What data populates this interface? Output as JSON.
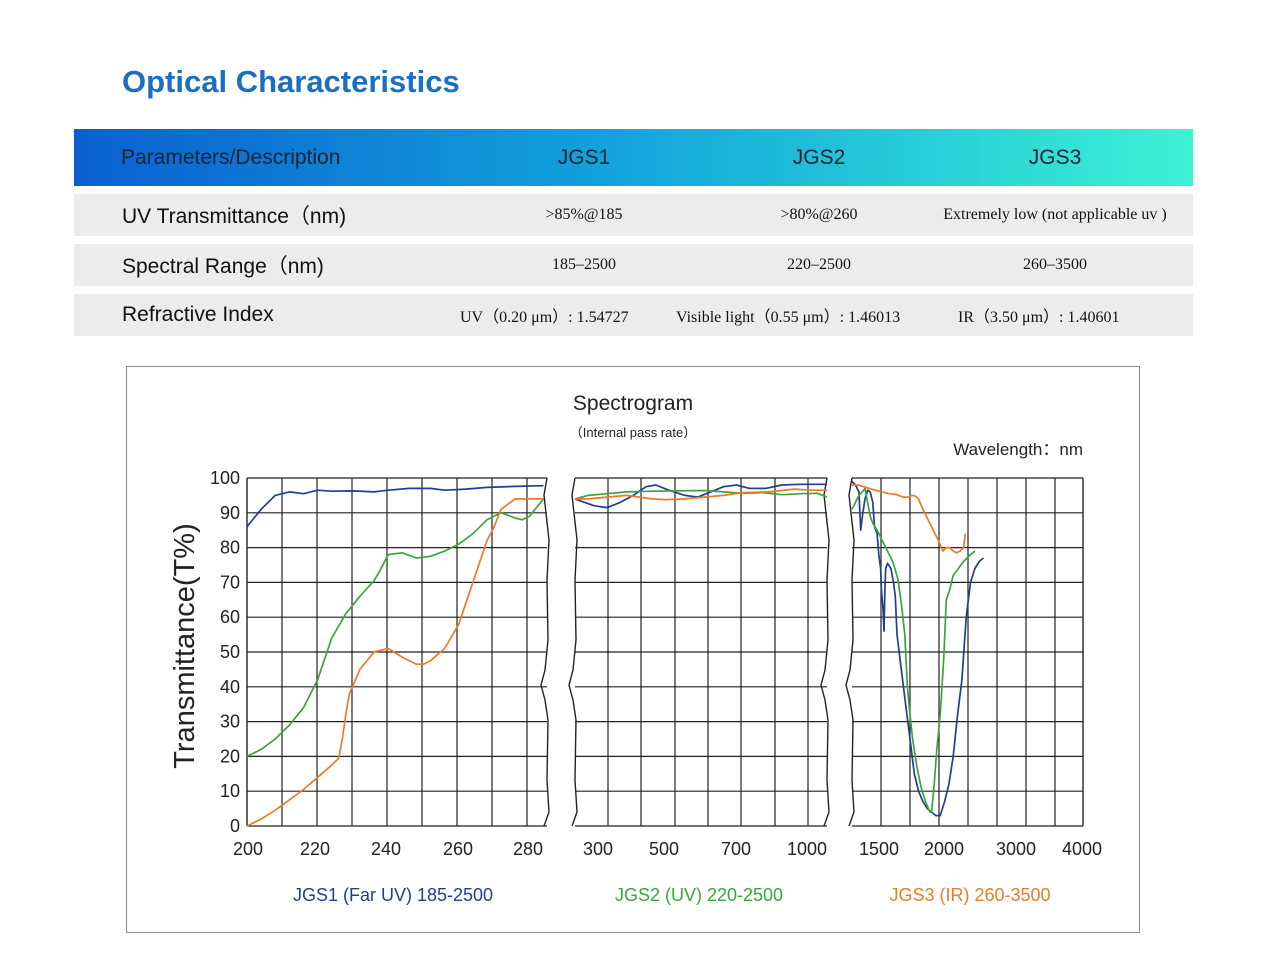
{
  "page": {
    "title": "Optical Characteristics"
  },
  "table": {
    "headers": [
      "Parameters/Description",
      "JGS1",
      "JGS2",
      "JGS3"
    ],
    "rows": [
      {
        "label": "UV Transmittance（nm)",
        "values": [
          ">85%@185",
          ">80%@260",
          "Extremely low (not applicable uv )"
        ]
      },
      {
        "label": "Spectral Range（nm)",
        "values": [
          "185–2500",
          "220–2500",
          "260–3500"
        ]
      },
      {
        "label": "Refractive Index",
        "values": [
          "UV（0.20 μm）: 1.54727",
          "Visible light（0.55 μm）: 1.46013",
          "IR（3.50 μm）: 1.40601"
        ]
      }
    ]
  },
  "chart_data": {
    "type": "line",
    "title": "Spectrogram",
    "subtitle": "（Internal pass rate）",
    "unit_label": "Wavelength：nm",
    "ylabel": "Transmittance(T%)",
    "ylim": [
      0,
      100
    ],
    "yticks": [
      "100",
      "90",
      "80",
      "70",
      "60",
      "50",
      "40",
      "30",
      "20",
      "10",
      "0"
    ],
    "colors": {
      "JGS1": "#1f3f8f",
      "JGS2": "#3aa63a",
      "JGS3": "#ee7a28"
    },
    "panels": [
      {
        "xlim": [
          200,
          285
        ],
        "xticks": [
          200,
          220,
          240,
          260,
          280
        ],
        "xtick_labels": [
          "200",
          "220",
          "240",
          "260",
          "280"
        ],
        "caption": "JGS1 (Far UV) 185-2500",
        "caption_color": "#1f3f8f",
        "series": [
          {
            "key": "JGS1",
            "points": [
              [
                200,
                86
              ],
              [
                204,
                91
              ],
              [
                208,
                95
              ],
              [
                212,
                96
              ],
              [
                216,
                95.5
              ],
              [
                220,
                96.5
              ],
              [
                224,
                96.2
              ],
              [
                230,
                96.3
              ],
              [
                236,
                96
              ],
              [
                240,
                96.5
              ],
              [
                246,
                97
              ],
              [
                252,
                97
              ],
              [
                256,
                96.5
              ],
              [
                262,
                96.8
              ],
              [
                268,
                97.3
              ],
              [
                276,
                97.6
              ],
              [
                284,
                97.8
              ]
            ]
          },
          {
            "key": "JGS2",
            "points": [
              [
                200,
                20
              ],
              [
                204,
                22
              ],
              [
                208,
                25
              ],
              [
                212,
                29
              ],
              [
                216,
                34
              ],
              [
                220,
                42
              ],
              [
                224,
                54
              ],
              [
                228,
                61
              ],
              [
                232,
                66
              ],
              [
                236,
                70.5
              ],
              [
                238,
                74
              ],
              [
                240,
                78
              ],
              [
                244,
                78.5
              ],
              [
                248,
                77
              ],
              [
                252,
                77.5
              ],
              [
                256,
                79
              ],
              [
                260,
                81
              ],
              [
                264,
                84
              ],
              [
                268,
                88
              ],
              [
                272,
                90
              ],
              [
                276,
                88.5
              ],
              [
                278,
                88
              ],
              [
                280,
                89
              ],
              [
                284,
                94
              ]
            ]
          },
          {
            "key": "JGS3",
            "points": [
              [
                200,
                0
              ],
              [
                204,
                2
              ],
              [
                208,
                4.5
              ],
              [
                212,
                7.5
              ],
              [
                216,
                10.5
              ],
              [
                220,
                14
              ],
              [
                224,
                17.5
              ],
              [
                226,
                19.5
              ],
              [
                227,
                25
              ],
              [
                228,
                32
              ],
              [
                229,
                38
              ],
              [
                232,
                45
              ],
              [
                236,
                50
              ],
              [
                240,
                51
              ],
              [
                244,
                48.5
              ],
              [
                248,
                46.5
              ],
              [
                250,
                46.5
              ],
              [
                252,
                47.5
              ],
              [
                256,
                51
              ],
              [
                260,
                58
              ],
              [
                264,
                70
              ],
              [
                268,
                82
              ],
              [
                270,
                86
              ],
              [
                272,
                91
              ],
              [
                276,
                94
              ],
              [
                284,
                94
              ]
            ]
          }
        ]
      },
      {
        "xlim": [
          280,
          1060
        ],
        "xticks": [
          300,
          500,
          700,
          1000
        ],
        "xtick_labels": [
          "300",
          "500",
          "700",
          "1000"
        ],
        "caption": "JGS2 (UV) 220-2500",
        "caption_color": "#3aa63a",
        "series": [
          {
            "key": "JGS1",
            "points": [
              [
                280,
                94
              ],
              [
                310,
                93
              ],
              [
                340,
                92
              ],
              [
                380,
                91.5
              ],
              [
                420,
                93
              ],
              [
                460,
                95
              ],
              [
                500,
                97.5
              ],
              [
                530,
                98
              ],
              [
                570,
                96.5
              ],
              [
                620,
                95
              ],
              [
                660,
                94.5
              ],
              [
                700,
                96
              ],
              [
                740,
                97.5
              ],
              [
                780,
                98
              ],
              [
                820,
                97
              ],
              [
                870,
                97
              ],
              [
                920,
                98
              ],
              [
                980,
                98.2
              ],
              [
                1060,
                98.2
              ]
            ]
          },
          {
            "key": "JGS2",
            "points": [
              [
                280,
                94
              ],
              [
                320,
                95
              ],
              [
                380,
                95.5
              ],
              [
                440,
                96
              ],
              [
                520,
                96.2
              ],
              [
                600,
                96.3
              ],
              [
                680,
                96.4
              ],
              [
                740,
                96
              ],
              [
                800,
                95.6
              ],
              [
                860,
                95.8
              ],
              [
                920,
                95.2
              ],
              [
                980,
                95.5
              ],
              [
                1030,
                95.6
              ],
              [
                1060,
                94.5
              ]
            ]
          },
          {
            "key": "JGS3",
            "points": [
              [
                280,
                94
              ],
              [
                320,
                94
              ],
              [
                380,
                94.5
              ],
              [
                440,
                95
              ],
              [
                520,
                94
              ],
              [
                560,
                93.8
              ],
              [
                620,
                94
              ],
              [
                680,
                94.5
              ],
              [
                740,
                95
              ],
              [
                800,
                95.8
              ],
              [
                880,
                96
              ],
              [
                960,
                96.8
              ],
              [
                1010,
                96.5
              ],
              [
                1060,
                96.5
              ]
            ]
          }
        ]
      },
      {
        "xlim": [
          1330,
          4000
        ],
        "xticks": [
          1500,
          2000,
          3000,
          4000
        ],
        "xtick_labels": [
          "1500",
          "2000",
          "3000",
          "4000"
        ],
        "caption": "JGS3 (IR) 260-3500",
        "caption_color": "#ee7a28",
        "series": [
          {
            "key": "JGS1",
            "points": [
              [
                1330,
                99
              ],
              [
                1370,
                98
              ],
              [
                1410,
                96
              ],
              [
                1430,
                85
              ],
              [
                1450,
                89
              ],
              [
                1480,
                94
              ],
              [
                1510,
                96.5
              ],
              [
                1540,
                96
              ],
              [
                1570,
                93
              ],
              [
                1590,
                86
              ],
              [
                1620,
                84
              ],
              [
                1640,
                78
              ],
              [
                1660,
                74
              ],
              [
                1670,
                68
              ],
              [
                1690,
                62
              ],
              [
                1700,
                56
              ],
              [
                1710,
                68
              ],
              [
                1720,
                74
              ],
              [
                1740,
                75.5
              ],
              [
                1780,
                74
              ],
              [
                1810,
                70
              ],
              [
                1830,
                66
              ],
              [
                1850,
                55
              ],
              [
                1900,
                45
              ],
              [
                1950,
                35
              ],
              [
                2000,
                25
              ],
              [
                2050,
                15
              ],
              [
                2100,
                10
              ],
              [
                2150,
                7
              ],
              [
                2200,
                5
              ],
              [
                2250,
                4
              ],
              [
                2300,
                3
              ],
              [
                2350,
                3
              ],
              [
                2400,
                7
              ],
              [
                2450,
                12
              ],
              [
                2500,
                20
              ],
              [
                2550,
                32
              ],
              [
                2600,
                42
              ],
              [
                2650,
                60
              ],
              [
                2700,
                70
              ],
              [
                2750,
                74
              ],
              [
                2800,
                76
              ],
              [
                2850,
                77
              ]
            ]
          },
          {
            "key": "JGS2",
            "points": [
              [
                1330,
                91
              ],
              [
                1370,
                93
              ],
              [
                1410,
                95
              ],
              [
                1450,
                96
              ],
              [
                1480,
                97
              ],
              [
                1510,
                93
              ],
              [
                1540,
                89
              ],
              [
                1570,
                87
              ],
              [
                1620,
                85
              ],
              [
                1680,
                82
              ],
              [
                1740,
                79
              ],
              [
                1800,
                76
              ],
              [
                1860,
                71
              ],
              [
                1900,
                64
              ],
              [
                1940,
                55
              ],
              [
                1970,
                40
              ],
              [
                2000,
                32
              ],
              [
                2030,
                25
              ],
              [
                2080,
                17
              ],
              [
                2130,
                11
              ],
              [
                2180,
                7
              ],
              [
                2230,
                4
              ],
              [
                2250,
                4
              ],
              [
                2280,
                12
              ],
              [
                2310,
                22
              ],
              [
                2350,
                32
              ],
              [
                2390,
                48
              ],
              [
                2420,
                65
              ],
              [
                2460,
                68
              ],
              [
                2500,
                72
              ],
              [
                2560,
                74
              ],
              [
                2620,
                76
              ],
              [
                2700,
                78
              ],
              [
                2750,
                79
              ]
            ]
          },
          {
            "key": "JGS3",
            "points": [
              [
                1330,
                98
              ],
              [
                1400,
                98
              ],
              [
                1470,
                97.5
              ],
              [
                1530,
                97
              ],
              [
                1600,
                96.5
              ],
              [
                1680,
                96
              ],
              [
                1760,
                95.5
              ],
              [
                1840,
                95.3
              ],
              [
                1920,
                94.5
              ],
              [
                1980,
                94.5
              ],
              [
                2020,
                95
              ],
              [
                2060,
                94.8
              ],
              [
                2100,
                94
              ],
              [
                2150,
                91
              ],
              [
                2210,
                88
              ],
              [
                2270,
                85
              ],
              [
                2330,
                82
              ],
              [
                2380,
                79
              ],
              [
                2420,
                80
              ],
              [
                2460,
                80
              ],
              [
                2500,
                79
              ],
              [
                2540,
                78.5
              ],
              [
                2580,
                79
              ],
              [
                2620,
                80
              ],
              [
                2640,
                84
              ]
            ]
          }
        ]
      }
    ]
  }
}
